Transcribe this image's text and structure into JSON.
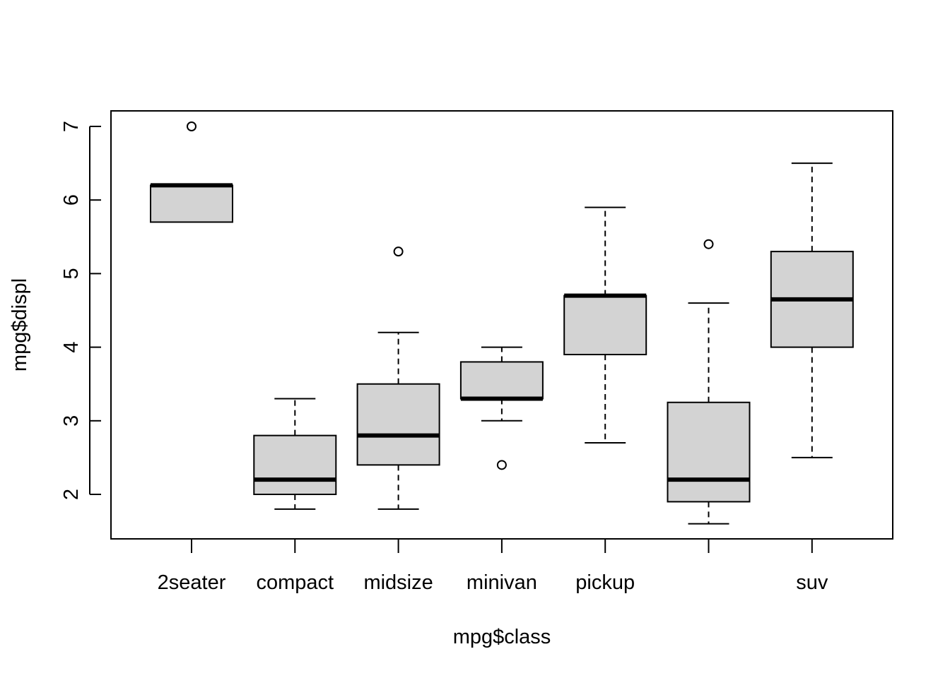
{
  "chart_data": {
    "type": "boxplot",
    "xlabel": "mpg$class",
    "ylabel": "mpg$displ",
    "ylim": [
      1.4,
      7.2
    ],
    "yticks": [
      2,
      3,
      4,
      5,
      6,
      7
    ],
    "box_fill": "#d3d3d3",
    "categories": [
      {
        "label": "2seater",
        "whisker_low": 5.7,
        "q1": 5.7,
        "median": 6.2,
        "q3": 6.2,
        "whisker_high": 6.2,
        "outliers": [
          7.0
        ]
      },
      {
        "label": "compact",
        "whisker_low": 1.8,
        "q1": 2.0,
        "median": 2.2,
        "q3": 2.8,
        "whisker_high": 3.3,
        "outliers": []
      },
      {
        "label": "midsize",
        "whisker_low": 1.8,
        "q1": 2.4,
        "median": 2.8,
        "q3": 3.5,
        "whisker_high": 4.2,
        "outliers": [
          5.3
        ]
      },
      {
        "label": "minivan",
        "whisker_low": 3.0,
        "q1": 3.3,
        "median": 3.3,
        "q3": 3.8,
        "whisker_high": 4.0,
        "outliers": [
          2.4
        ]
      },
      {
        "label": "pickup",
        "whisker_low": 2.7,
        "q1": 3.9,
        "median": 4.7,
        "q3": 4.7,
        "whisker_high": 5.9,
        "outliers": []
      },
      {
        "label": "",
        "whisker_low": 1.6,
        "q1": 1.9,
        "median": 2.2,
        "q3": 3.25,
        "whisker_high": 4.6,
        "outliers": [
          5.4
        ]
      },
      {
        "label": "suv",
        "whisker_low": 2.5,
        "q1": 4.0,
        "median": 4.65,
        "q3": 5.3,
        "whisker_high": 6.5,
        "outliers": []
      }
    ]
  }
}
